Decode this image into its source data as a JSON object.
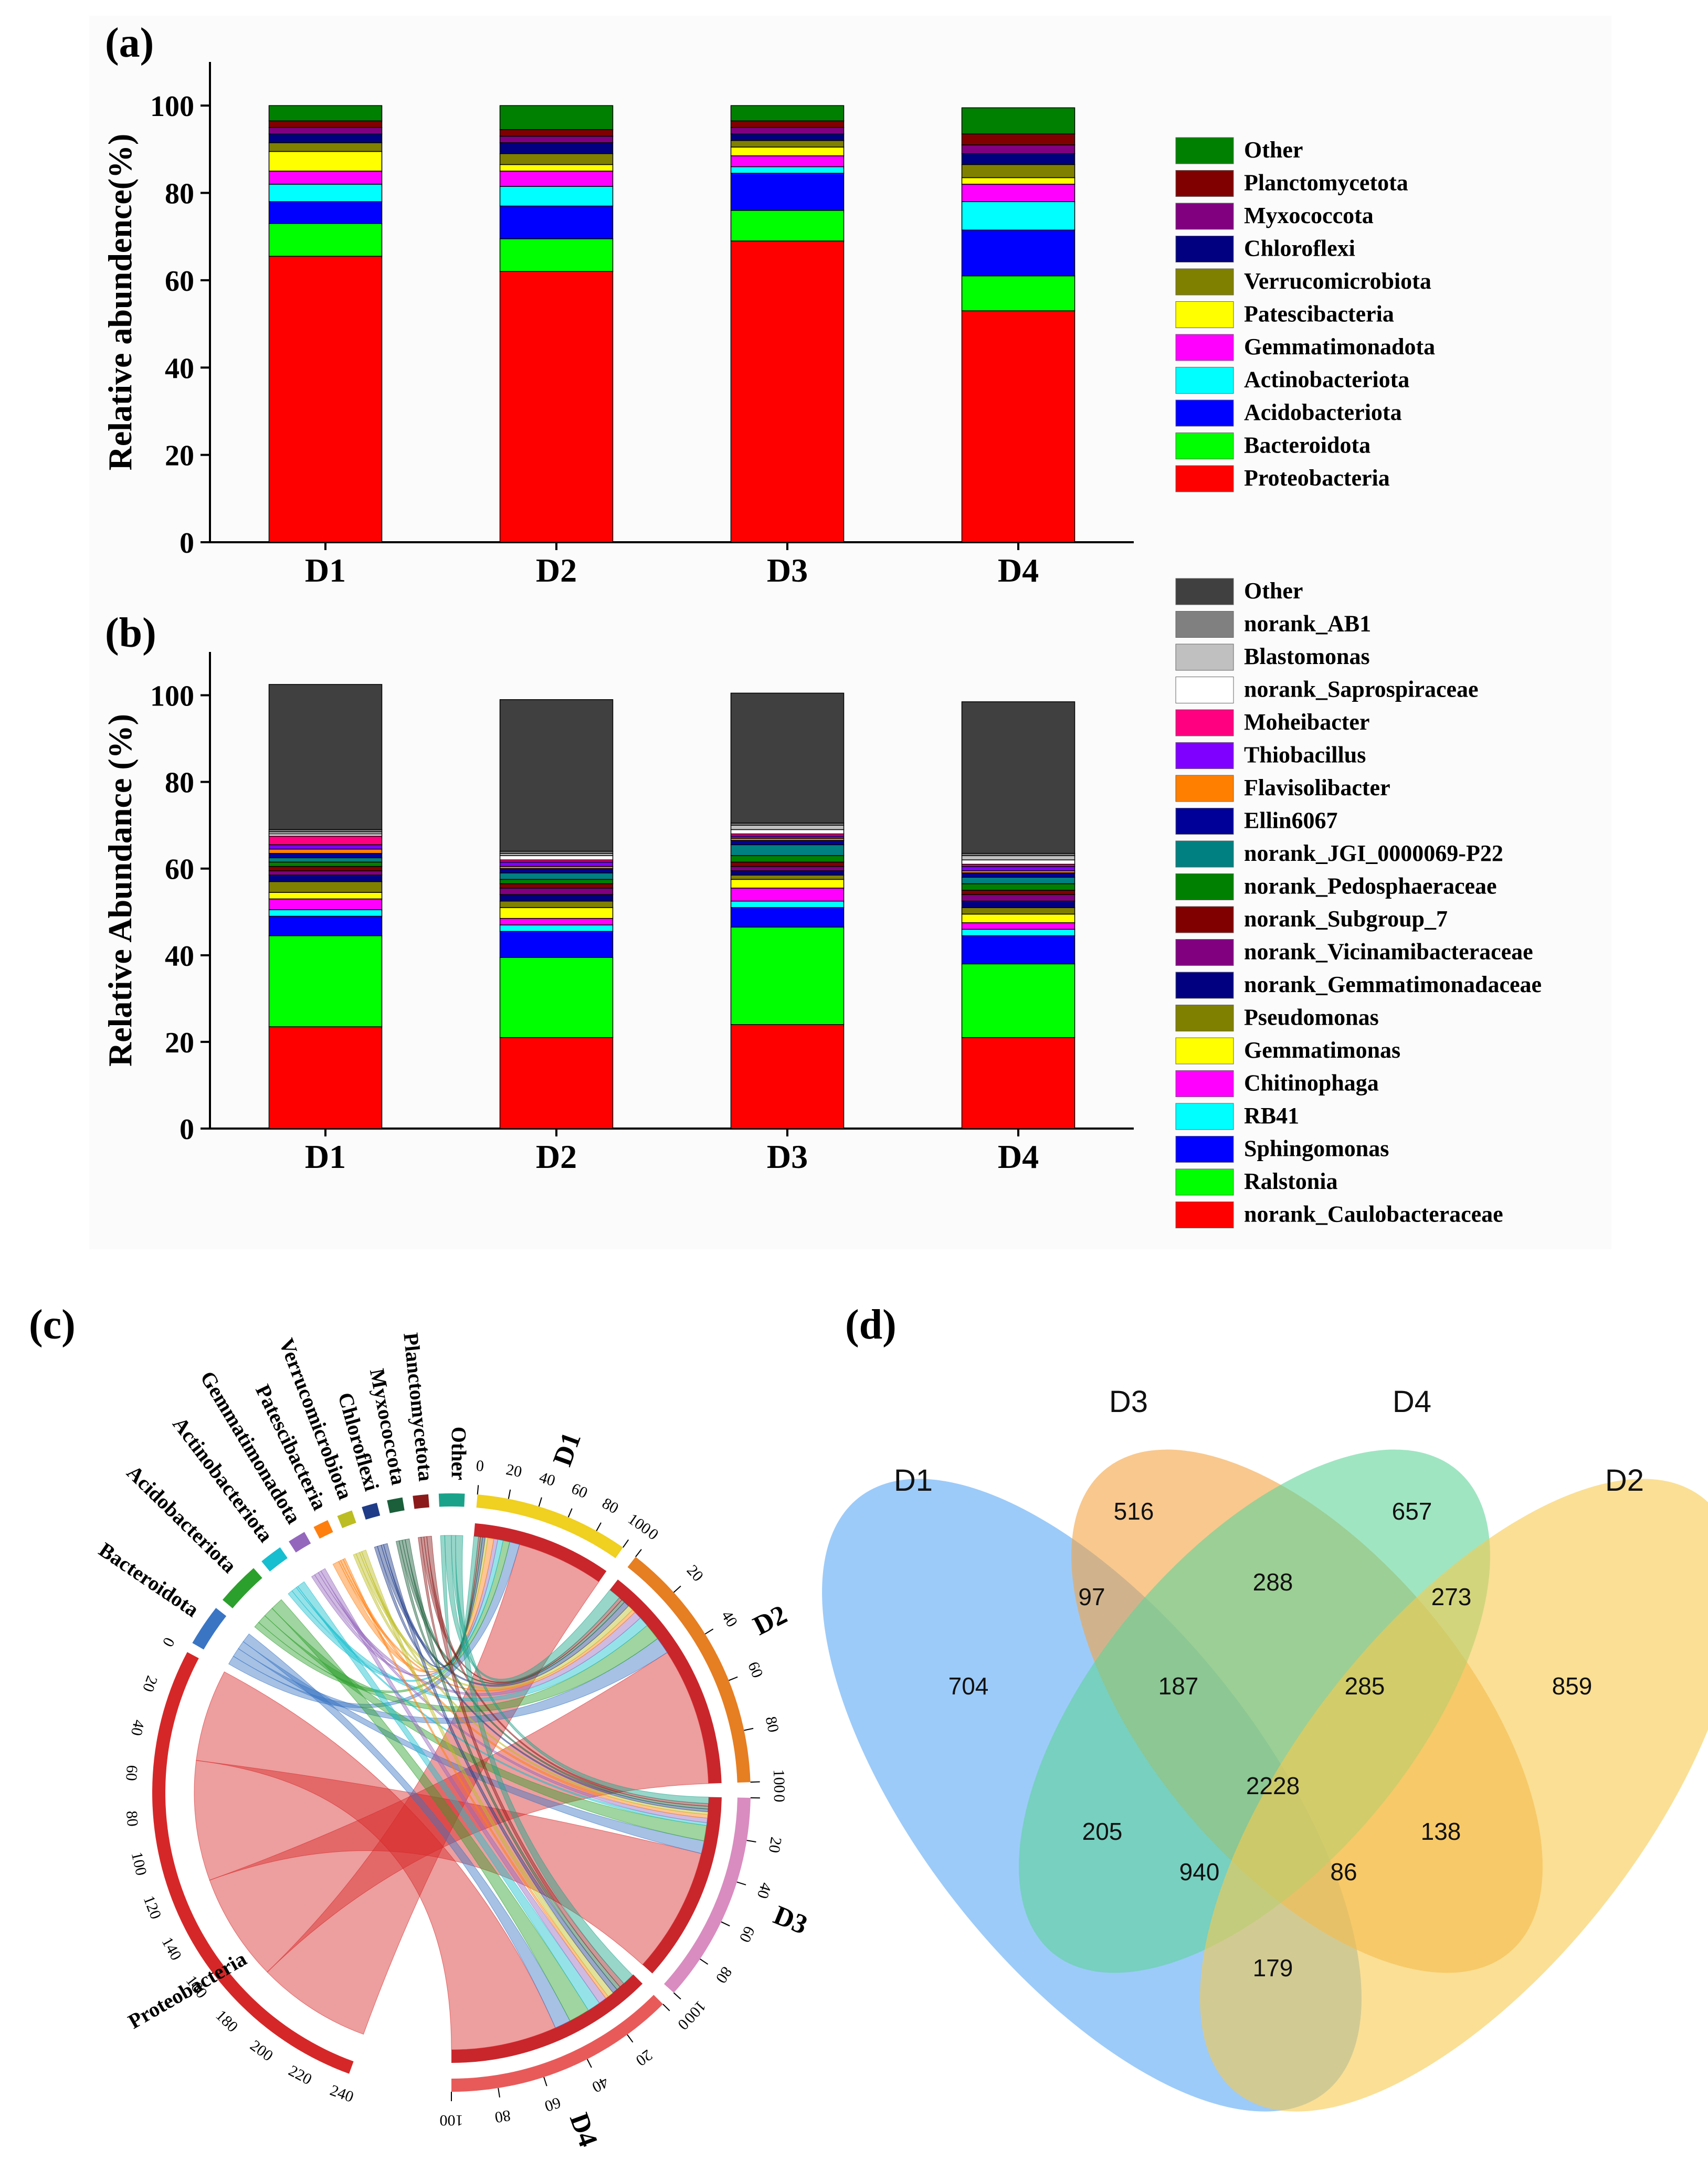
{
  "chart_data": [
    {
      "type": "bar",
      "stacked": true,
      "panel": "(a)",
      "ylabel": "Relative abundence(%)",
      "ylim": [
        0,
        110
      ],
      "yticks": [
        0,
        20,
        40,
        60,
        80,
        100
      ],
      "categories": [
        "D1",
        "D2",
        "D3",
        "D4"
      ],
      "series": [
        {
          "name": "Proteobacteria",
          "color": "#ff0000",
          "values": [
            65.5,
            62.0,
            69.0,
            53.0
          ]
        },
        {
          "name": "Bacteroidota",
          "color": "#00ff00",
          "values": [
            7.5,
            7.5,
            7.0,
            8.0
          ]
        },
        {
          "name": "Acidobacteriota",
          "color": "#0000ff",
          "values": [
            5.0,
            7.5,
            8.5,
            10.5
          ]
        },
        {
          "name": "Actinobacteriota",
          "color": "#00ffff",
          "values": [
            4.0,
            4.5,
            1.5,
            6.5
          ]
        },
        {
          "name": "Gemmatimonadota",
          "color": "#ff00ff",
          "values": [
            3.0,
            3.5,
            2.5,
            4.0
          ]
        },
        {
          "name": "Patescibacteria",
          "color": "#ffff00",
          "values": [
            4.5,
            1.5,
            2.0,
            1.5
          ]
        },
        {
          "name": "Verrucomicrobiota",
          "color": "#808000",
          "values": [
            2.0,
            2.5,
            1.5,
            3.0
          ]
        },
        {
          "name": "Chloroflexi",
          "color": "#000080",
          "values": [
            2.0,
            2.5,
            1.5,
            2.5
          ]
        },
        {
          "name": "Myxococcota",
          "color": "#800080",
          "values": [
            1.5,
            1.5,
            1.5,
            2.0
          ]
        },
        {
          "name": "Planctomycetota",
          "color": "#800000",
          "values": [
            1.5,
            1.5,
            1.5,
            2.5
          ]
        },
        {
          "name": "Other",
          "color": "#008000",
          "values": [
            3.5,
            5.5,
            3.5,
            6.0
          ]
        }
      ]
    },
    {
      "type": "bar",
      "stacked": true,
      "panel": "(b)",
      "ylabel": "Relative Abundance (%)",
      "ylim": [
        0,
        110
      ],
      "yticks": [
        0,
        20,
        40,
        60,
        80,
        100
      ],
      "categories": [
        "D1",
        "D2",
        "D3",
        "D4"
      ],
      "series": [
        {
          "name": "norank_Caulobacteraceae",
          "color": "#ff0000",
          "values": [
            23.5,
            21.0,
            24.0,
            21.0
          ]
        },
        {
          "name": "Ralstonia",
          "color": "#00ff00",
          "values": [
            21.0,
            18.5,
            22.5,
            17.0
          ]
        },
        {
          "name": "Sphingomonas",
          "color": "#0000ff",
          "values": [
            4.5,
            6.0,
            4.5,
            6.5
          ]
        },
        {
          "name": "RB41",
          "color": "#00ffff",
          "values": [
            1.5,
            1.5,
            1.5,
            1.5
          ]
        },
        {
          "name": "Chitinophaga",
          "color": "#ff00ff",
          "values": [
            2.5,
            1.5,
            3.0,
            1.5
          ]
        },
        {
          "name": "Gemmatimonas",
          "color": "#ffff00",
          "values": [
            1.5,
            2.5,
            2.0,
            2.0
          ]
        },
        {
          "name": "Pseudomonas",
          "color": "#808000",
          "values": [
            2.5,
            1.5,
            1.0,
            1.5
          ]
        },
        {
          "name": "norank_Gemmatimonadaceae",
          "color": "#000080",
          "values": [
            1.5,
            1.5,
            1.0,
            1.5
          ]
        },
        {
          "name": "norank_Vicinamibacteraceae",
          "color": "#800080",
          "values": [
            1.0,
            1.5,
            1.0,
            1.5
          ]
        },
        {
          "name": "norank_Subgroup_7",
          "color": "#800000",
          "values": [
            1.0,
            1.0,
            1.0,
            1.0
          ]
        },
        {
          "name": "norank_Pedosphaeraceae",
          "color": "#008000",
          "values": [
            1.0,
            1.0,
            1.5,
            1.5
          ]
        },
        {
          "name": "norank_JGI_0000069-P22",
          "color": "#008080",
          "values": [
            1.0,
            1.5,
            2.5,
            1.5
          ]
        },
        {
          "name": "Ellin6067",
          "color": "#000099",
          "values": [
            1.0,
            1.0,
            1.0,
            1.0
          ]
        },
        {
          "name": "Flavisolibacter",
          "color": "#ff8000",
          "values": [
            1.0,
            0.5,
            0.5,
            0.5
          ]
        },
        {
          "name": "Thiobacillus",
          "color": "#8000ff",
          "values": [
            1.0,
            1.0,
            0.5,
            1.0
          ]
        },
        {
          "name": "Moheibacter",
          "color": "#ff0080",
          "values": [
            2.0,
            0.5,
            0.5,
            0.5
          ]
        },
        {
          "name": "norank_Saprospiraceae",
          "color": "#ffffff",
          "values": [
            0.5,
            1.0,
            1.0,
            1.0
          ]
        },
        {
          "name": "Blastomonas",
          "color": "#c0c0c0",
          "values": [
            0.5,
            0.5,
            1.0,
            1.0
          ]
        },
        {
          "name": "norank_AB1",
          "color": "#808080",
          "values": [
            0.5,
            0.5,
            0.5,
            0.5
          ]
        },
        {
          "name": "Other",
          "color": "#404040",
          "values": [
            33.5,
            35.0,
            30.0,
            35.0
          ]
        }
      ]
    },
    {
      "type": "chord",
      "panel": "(c)",
      "samples": [
        {
          "name": "D1",
          "ticks": [
            "0",
            "20",
            "40",
            "60",
            "80",
            "100"
          ]
        },
        {
          "name": "D2",
          "ticks": [
            "0",
            "20",
            "40",
            "60",
            "80",
            "100"
          ]
        },
        {
          "name": "D3",
          "ticks": [
            "0",
            "20",
            "40",
            "60",
            "80",
            "100"
          ]
        },
        {
          "name": "D4",
          "ticks": [
            "0",
            "20",
            "40",
            "60",
            "80",
            "100"
          ]
        }
      ],
      "phyla": [
        "Proteobacteria",
        "Bacteroidota",
        "Acidobacteriota",
        "Actinobacteriota",
        "Gemmatimonadota",
        "Patescibacteria",
        "Verrucomicrobiota",
        "Chloroflexi",
        "Myxococcota",
        "Planctomycetota",
        "Other"
      ],
      "proteobacteria_ticks": [
        "0",
        "20",
        "40",
        "60",
        "80",
        "100",
        "120",
        "140",
        "160",
        "180",
        "200",
        "220",
        "240"
      ]
    },
    {
      "type": "venn",
      "panel": "(d)",
      "sets": [
        "D1",
        "D3",
        "D4",
        "D2"
      ],
      "regions": [
        {
          "sets": "D1",
          "value": "704"
        },
        {
          "sets": "D3",
          "value": "516"
        },
        {
          "sets": "D4",
          "value": "657"
        },
        {
          "sets": "D2",
          "value": "859"
        },
        {
          "sets": "D1∩D3",
          "value": "97"
        },
        {
          "sets": "D3∩D4",
          "value": "288"
        },
        {
          "sets": "D4∩D2",
          "value": "273"
        },
        {
          "sets": "D1∩D3∩D4",
          "value": "187"
        },
        {
          "sets": "D3∩D4∩D2",
          "value": "285"
        },
        {
          "sets": "D1∩D3∩D4∩D2",
          "value": "2228"
        },
        {
          "sets": "D1∩D4",
          "value": "205"
        },
        {
          "sets": "D1∩D4∩D2",
          "value": "940"
        },
        {
          "sets": "D1∩D3∩D2",
          "value": "86"
        },
        {
          "sets": "D3∩D2",
          "value": "138"
        },
        {
          "sets": "D1∩D2",
          "value": "179"
        }
      ]
    }
  ],
  "colors": {
    "venn_D1": "#5aa9f5",
    "venn_D3": "#f4a442",
    "venn_D4": "#5fd39a",
    "venn_D2": "#f7c94f"
  }
}
